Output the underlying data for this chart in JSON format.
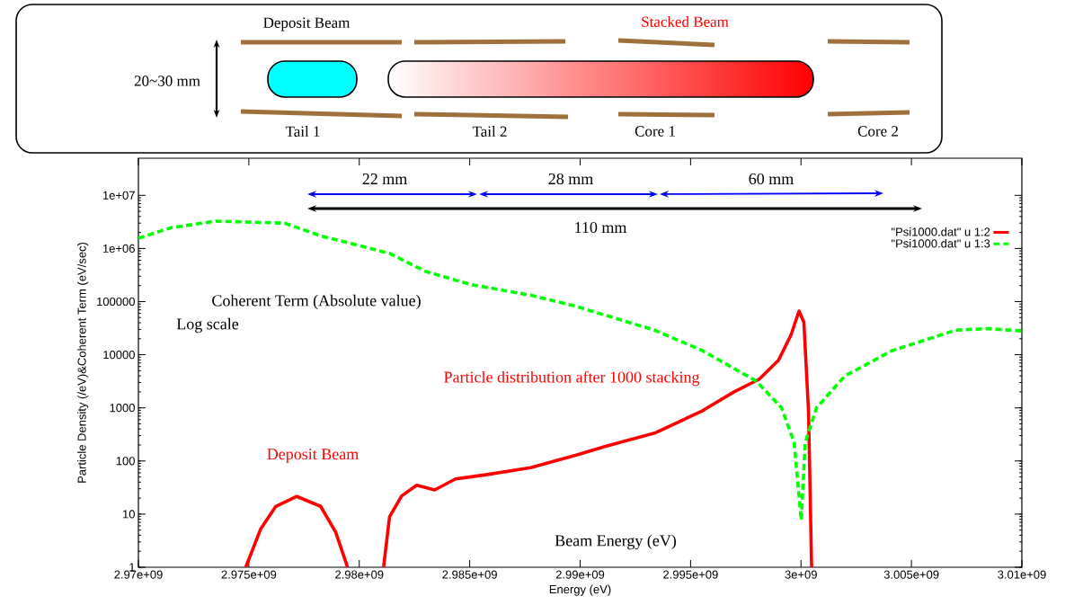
{
  "chart_data": {
    "type": "line",
    "xlabel": "Energy (eV)",
    "ylabel": "Particle Density (/eV)&Coherent Term (eV/sec)",
    "annotations": [
      "Deposit Beam",
      "Stacked Beam",
      "20~30 mm",
      "Tail 1",
      "Tail 2",
      "Core 1",
      "Core 2",
      "22 mm",
      "28 mm",
      "60 mm",
      "110 mm",
      "Log scale",
      "Coherent Term (Absolute value)",
      "Particle distribution after 1000 stacking",
      "Deposit Beam",
      "Beam Energy (eV)"
    ],
    "xlim": [
      2970000000,
      3010000000
    ],
    "ylim": [
      1,
      50000000
    ],
    "xticks": [
      {
        "value": 2970000000,
        "label": "2.97e+09"
      },
      {
        "value": 2975000000,
        "label": "2.975e+09"
      },
      {
        "value": 2980000000,
        "label": "2.98e+09"
      },
      {
        "value": 2985000000,
        "label": "2.985e+09"
      },
      {
        "value": 2990000000,
        "label": "2.99e+09"
      },
      {
        "value": 2995000000,
        "label": "2.995e+09"
      },
      {
        "value": 3000000000,
        "label": "3e+09"
      },
      {
        "value": 3005000000,
        "label": "3.005e+09"
      },
      {
        "value": 3010000000,
        "label": "3.01e+09"
      }
    ],
    "yticks": [
      1,
      10,
      100,
      1000,
      10000,
      100000,
      {
        "value": 1000000,
        "label": "1e+06"
      },
      {
        "value": 10000000,
        "label": "1e+07"
      }
    ],
    "log": true,
    "legend": "top right",
    "marker": "none",
    "series": [
      {
        "name": "\"Psi1000.dat\" u 1:2",
        "color": "#ff0000",
        "line_style": "solid",
        "x": [
          2974860000,
          2975540000,
          2976220000,
          2977170000,
          2978250000,
          2978930000,
          2979470000,
          2980300000,
          2981100000,
          2981370000,
          2981920000,
          2982600000,
          2983410000,
          2984360000,
          2985720000,
          2987750000,
          2989790000,
          2991220000,
          2993370000,
          2995530000,
          2996970000,
          2998110000,
          2998980000,
          2999550000,
          2999910000,
          3000130000,
          3000340000,
          3000480000
        ],
        "values": [
          1,
          5.3,
          14,
          21.5,
          14,
          4.6,
          1,
          null,
          1,
          8.9,
          22,
          35,
          28.5,
          46,
          55,
          75,
          128,
          193,
          335,
          877,
          2000,
          3470,
          7880,
          23700,
          66400,
          40900,
          877,
          1
        ]
      },
      {
        "name": "\"Psi1000.dat\" u 1:3",
        "color": "#00ff00",
        "line_style": "dashed",
        "x": [
          2970000000,
          2971470000,
          2973500000,
          2976620000,
          2978250000,
          2981370000,
          2983000000,
          2985040000,
          2987750000,
          2989790000,
          2993370000,
          2995530000,
          2997970000,
          2999120000,
          2999690000,
          3000010000,
          3000190000,
          3000700000,
          3001990000,
          3004140000,
          3007010000,
          3008440000,
          3010000000
        ],
        "values": [
          1560000,
          2450000,
          3270000,
          3000000,
          1730000,
          810000,
          370000,
          210000,
          132000,
          82000,
          29000,
          12000,
          3200,
          1000,
          222,
          7.7,
          222,
          1000,
          4000,
          12000,
          29000,
          31000,
          28000
        ]
      }
    ]
  }
}
